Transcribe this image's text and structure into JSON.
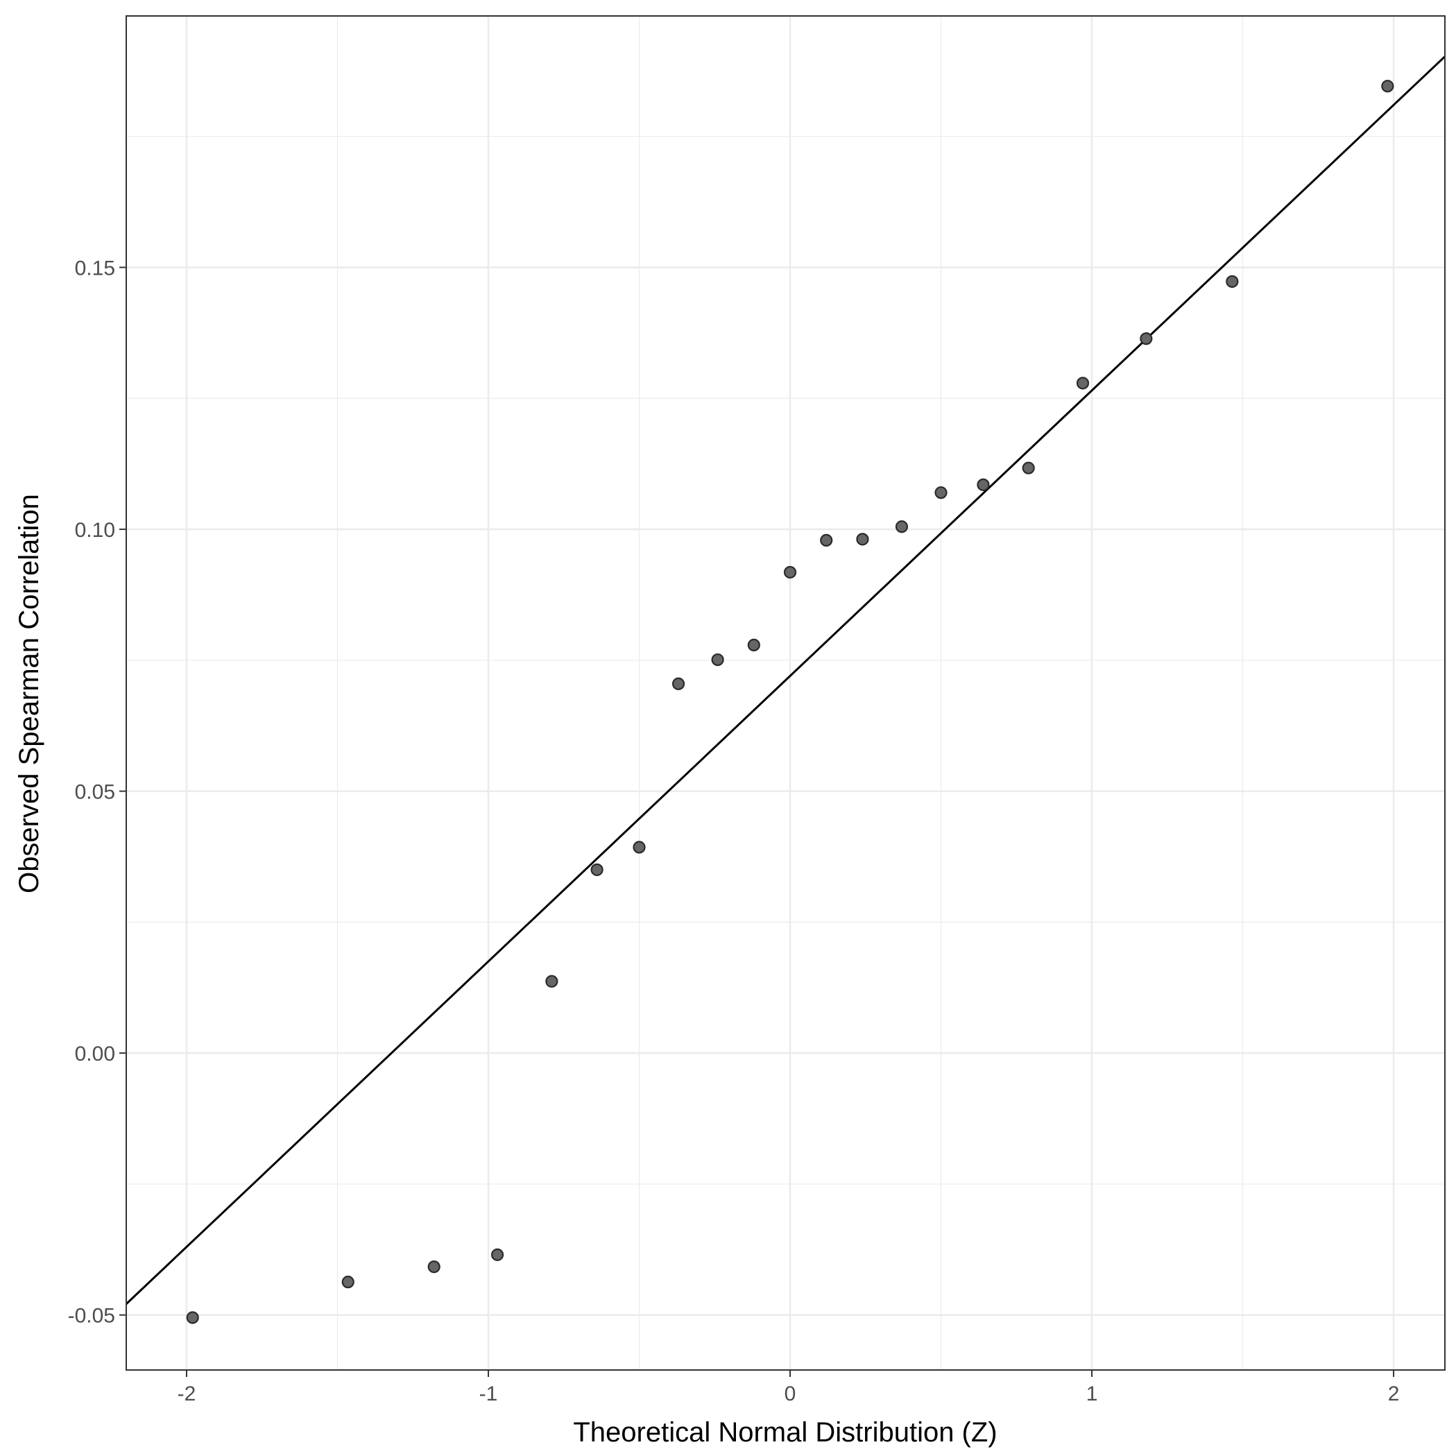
{
  "chart_data": {
    "type": "scatter",
    "title": "",
    "xlabel": "Theoretical Normal Distribution (Z)",
    "ylabel": "Observed Spearman Correlation",
    "xlim": [
      -2.2,
      2.17
    ],
    "ylim": [
      -0.0605,
      0.198
    ],
    "x_ticks": [
      {
        "value": -2,
        "label": "-2"
      },
      {
        "value": -1,
        "label": "-1"
      },
      {
        "value": 0,
        "label": "0"
      },
      {
        "value": 1,
        "label": "1"
      },
      {
        "value": 2,
        "label": "2"
      }
    ],
    "x_minor_ticks": [
      -1.5,
      -0.5,
      0.5,
      1.5
    ],
    "y_ticks": [
      {
        "value": -0.05,
        "label": "-0.05"
      },
      {
        "value": 0.0,
        "label": "0.00"
      },
      {
        "value": 0.05,
        "label": "0.05"
      },
      {
        "value": 0.1,
        "label": "0.10"
      },
      {
        "value": 0.15,
        "label": "0.15"
      }
    ],
    "y_minor_ticks": [
      -0.025,
      0.025,
      0.075,
      0.125,
      0.175
    ],
    "grid": true,
    "points": [
      {
        "x": -1.98,
        "y": -0.0505
      },
      {
        "x": -1.465,
        "y": -0.0437
      },
      {
        "x": -1.18,
        "y": -0.0408
      },
      {
        "x": -0.97,
        "y": -0.0385
      },
      {
        "x": -0.79,
        "y": 0.0137
      },
      {
        "x": -0.64,
        "y": 0.035
      },
      {
        "x": -0.5,
        "y": 0.0393
      },
      {
        "x": -0.37,
        "y": 0.0705
      },
      {
        "x": -0.24,
        "y": 0.0751
      },
      {
        "x": -0.12,
        "y": 0.0779
      },
      {
        "x": 0.0,
        "y": 0.0918
      },
      {
        "x": 0.12,
        "y": 0.0979
      },
      {
        "x": 0.24,
        "y": 0.0981
      },
      {
        "x": 0.37,
        "y": 0.1005
      },
      {
        "x": 0.5,
        "y": 0.107
      },
      {
        "x": 0.64,
        "y": 0.1085
      },
      {
        "x": 0.79,
        "y": 0.1117
      },
      {
        "x": 0.97,
        "y": 0.1279
      },
      {
        "x": 1.18,
        "y": 0.1364
      },
      {
        "x": 1.465,
        "y": 0.1473
      },
      {
        "x": 1.98,
        "y": 0.1846
      }
    ],
    "reference_line": {
      "intercept": 0.072,
      "slope": 0.0545
    },
    "colors": {
      "point_fill": "#666666",
      "point_stroke": "#2b2b2b",
      "line": "#000000",
      "grid": "#ebebeb",
      "panel_border": "#333333",
      "tick_label": "#4d4d4d"
    }
  }
}
